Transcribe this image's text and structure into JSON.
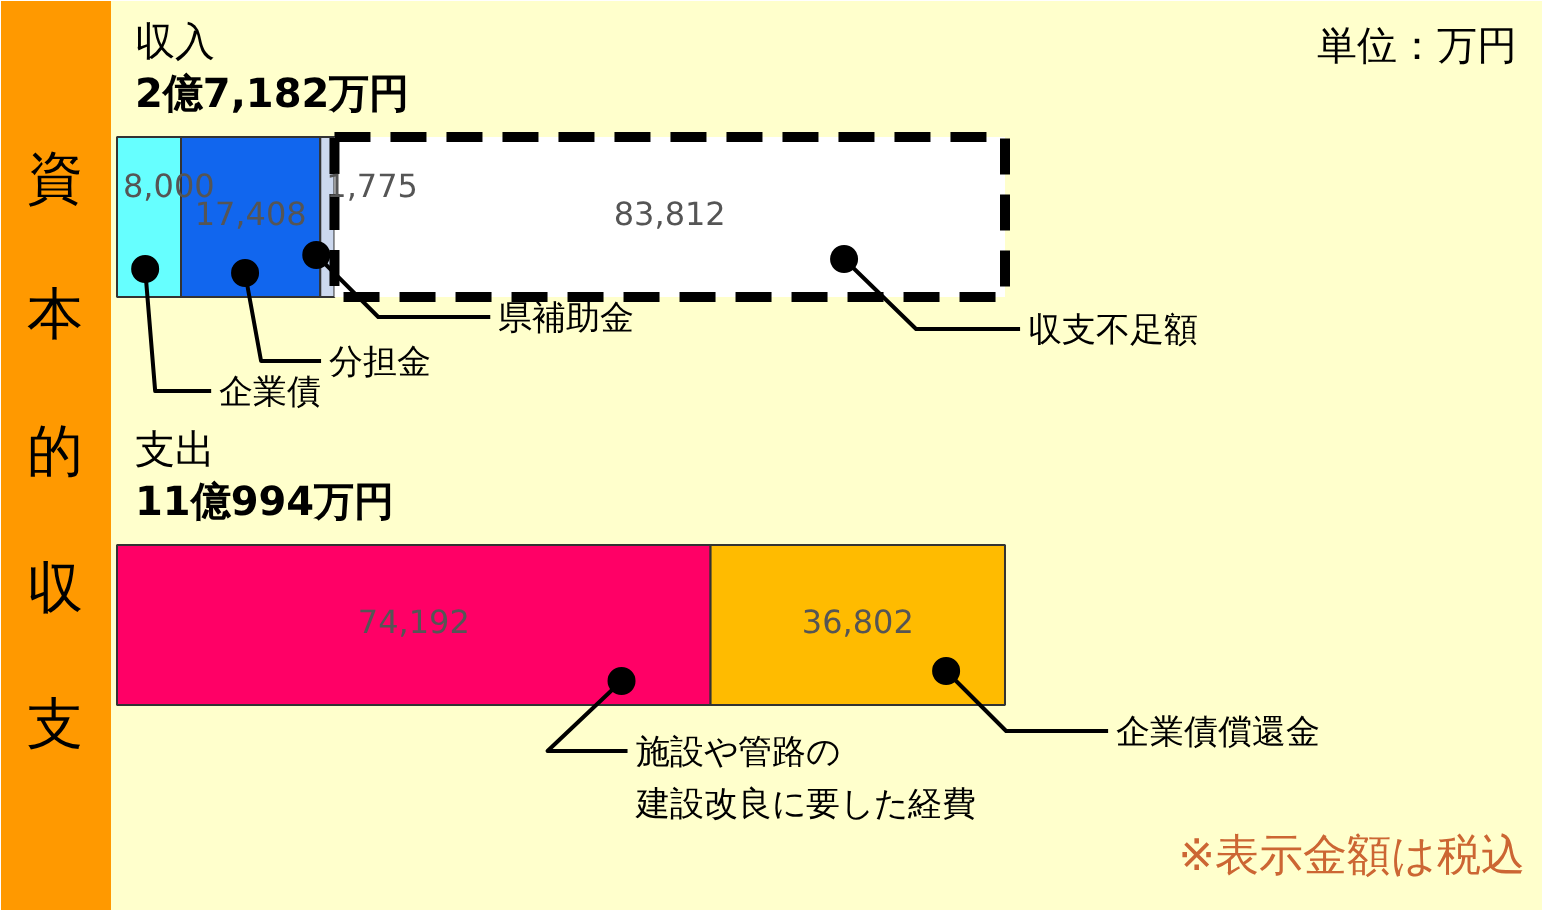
{
  "chart_data": {
    "type": "bar",
    "orientation": "horizontal",
    "stacked": true,
    "title": "資本的収支",
    "categories": [
      "収入",
      "支出"
    ],
    "totals": [
      "2億7,182万円",
      "11億994万円"
    ],
    "series": [
      {
        "name": "企業債",
        "color": "#66ffff",
        "values": [
          8000,
          null
        ],
        "value_labels": [
          "8,000",
          null
        ]
      },
      {
        "name": "分担金",
        "color": "#1166ee",
        "values": [
          17408,
          null
        ],
        "value_labels": [
          "17,408",
          null
        ]
      },
      {
        "name": "県補助金",
        "color": "#ccd8ee",
        "values": [
          1775,
          null
        ],
        "value_labels": [
          "1,775",
          null
        ]
      },
      {
        "name": "収支不足額",
        "color": "#ffffff",
        "line_style": "dashed",
        "values": [
          83812,
          null
        ],
        "value_labels": [
          "83,812",
          null
        ]
      },
      {
        "name": "施設や管路の建設改良に要した経費",
        "color": "#ff0066",
        "values": [
          null,
          74192
        ],
        "value_labels": [
          null,
          "74,192"
        ]
      },
      {
        "name": "企業債償還金",
        "color": "#ffbb00",
        "values": [
          null,
          36802
        ],
        "value_labels": [
          null,
          "36,802"
        ]
      }
    ],
    "annotations": [
      "単位：万円",
      "※表示金額は税込"
    ]
  }
}
